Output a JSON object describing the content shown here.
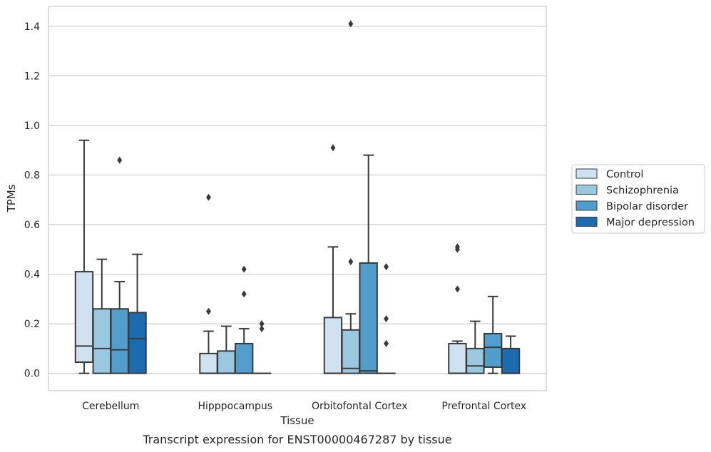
{
  "chart_data": {
    "type": "box",
    "xlabel": "Tissue",
    "ylabel": "TPMs",
    "caption": "Transcript expression for ENST00000467287 by tissue",
    "ylim": [
      -0.07,
      1.48
    ],
    "yticks": [
      0.0,
      0.2,
      0.4,
      0.6,
      0.8,
      1.0,
      1.2,
      1.4
    ],
    "yticklabels": [
      "0.0",
      "0.2",
      "0.4",
      "0.6",
      "0.8",
      "1.0",
      "1.2",
      "1.4"
    ],
    "grid": "horizontal",
    "legend_position": "right",
    "categories": [
      "Cerebellum",
      "Hipppocampus",
      "Orbitofontal Cortex",
      "Prefrontal Cortex"
    ],
    "series": [
      {
        "name": "Control",
        "color": "#d0e1f2",
        "boxes": [
          {
            "q1": 0.045,
            "median": 0.11,
            "q3": 0.41,
            "whislo": 0.0,
            "whishi": 0.94,
            "fliers": []
          },
          {
            "q1": 0.0,
            "median": 0.0,
            "q3": 0.08,
            "whislo": 0.0,
            "whishi": 0.17,
            "fliers": [
              0.71,
              0.25
            ]
          },
          {
            "q1": 0.0,
            "median": 0.0,
            "q3": 0.225,
            "whislo": 0.0,
            "whishi": 0.51,
            "fliers": [
              0.91
            ]
          },
          {
            "q1": 0.0,
            "median": 0.0,
            "q3": 0.12,
            "whislo": 0.0,
            "whishi": 0.13,
            "fliers": [
              0.51,
              0.5,
              0.34
            ]
          }
        ]
      },
      {
        "name": "Schizophrenia",
        "color": "#9ac8e0",
        "boxes": [
          {
            "q1": 0.0,
            "median": 0.1,
            "q3": 0.26,
            "whislo": 0.0,
            "whishi": 0.46,
            "fliers": []
          },
          {
            "q1": 0.0,
            "median": 0.0,
            "q3": 0.09,
            "whislo": 0.0,
            "whishi": 0.19,
            "fliers": []
          },
          {
            "q1": 0.0,
            "median": 0.02,
            "q3": 0.175,
            "whislo": 0.0,
            "whishi": 0.24,
            "fliers": [
              1.41,
              0.45
            ]
          },
          {
            "q1": 0.0,
            "median": 0.03,
            "q3": 0.1,
            "whislo": 0.0,
            "whishi": 0.21,
            "fliers": []
          }
        ]
      },
      {
        "name": "Bipolar disorder",
        "color": "#529dcc",
        "boxes": [
          {
            "q1": 0.0,
            "median": 0.095,
            "q3": 0.26,
            "whislo": 0.0,
            "whishi": 0.37,
            "fliers": [
              0.86
            ]
          },
          {
            "q1": 0.0,
            "median": 0.0,
            "q3": 0.12,
            "whislo": 0.0,
            "whishi": 0.18,
            "fliers": [
              0.42,
              0.32
            ]
          },
          {
            "q1": 0.0,
            "median": 0.01,
            "q3": 0.445,
            "whislo": 0.0,
            "whishi": 0.88,
            "fliers": []
          },
          {
            "q1": 0.025,
            "median": 0.105,
            "q3": 0.16,
            "whislo": 0.0,
            "whishi": 0.31,
            "fliers": []
          }
        ]
      },
      {
        "name": "Major depression",
        "color": "#1c6aaf",
        "boxes": [
          {
            "q1": 0.0,
            "median": 0.14,
            "q3": 0.245,
            "whislo": 0.0,
            "whishi": 0.48,
            "fliers": []
          },
          {
            "q1": 0.0,
            "median": 0.0,
            "q3": 0.0,
            "whislo": 0.0,
            "whishi": 0.0,
            "fliers": [
              0.2,
              0.18
            ]
          },
          {
            "q1": 0.0,
            "median": 0.0,
            "q3": 0.0,
            "whislo": 0.0,
            "whishi": 0.0,
            "fliers": [
              0.43,
              0.22,
              0.12
            ]
          },
          {
            "q1": 0.0,
            "median": 0.0,
            "q3": 0.1,
            "whislo": 0.0,
            "whishi": 0.15,
            "fliers": []
          }
        ]
      }
    ]
  }
}
